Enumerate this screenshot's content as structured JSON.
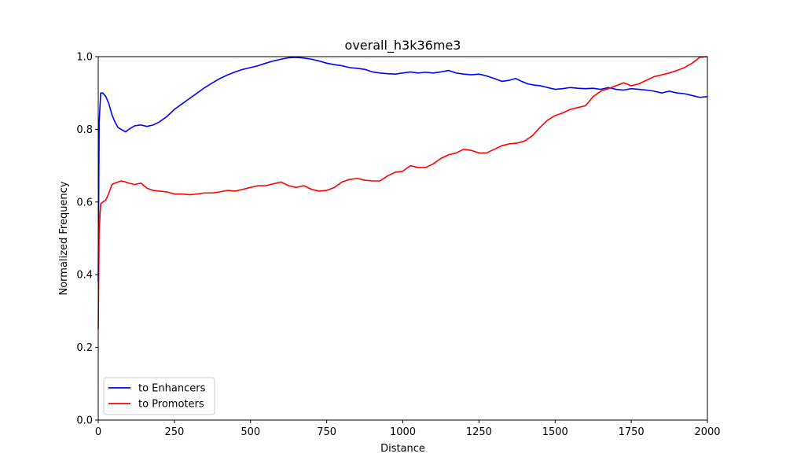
{
  "chart_data": {
    "type": "line",
    "title": "overall_h3k36me3",
    "xlabel": "Distance",
    "ylabel": "Normalized Frequency",
    "xlim": [
      0,
      2000
    ],
    "ylim": [
      0,
      1.0
    ],
    "xticks": [
      0,
      250,
      500,
      750,
      1000,
      1250,
      1500,
      1750,
      2000
    ],
    "xtick_labels": [
      "0",
      "250",
      "500",
      "750",
      "1000",
      "1250",
      "1500",
      "1750",
      "2000"
    ],
    "yticks": [
      0.0,
      0.2,
      0.4,
      0.6,
      0.8,
      1.0
    ],
    "ytick_labels": [
      "0.0",
      "0.2",
      "0.4",
      "0.6",
      "0.8",
      "1.0"
    ],
    "grid": false,
    "legend_position": "lower-left",
    "series": [
      {
        "name": "to Enhancers",
        "color": "#0000ff",
        "x": [
          0,
          3,
          8,
          15,
          25,
          35,
          45,
          55,
          65,
          75,
          90,
          100,
          120,
          140,
          160,
          180,
          200,
          225,
          250,
          275,
          300,
          325,
          350,
          375,
          400,
          425,
          450,
          475,
          500,
          525,
          550,
          575,
          600,
          625,
          650,
          675,
          700,
          725,
          750,
          775,
          800,
          825,
          850,
          875,
          900,
          925,
          950,
          975,
          1000,
          1025,
          1050,
          1075,
          1100,
          1125,
          1150,
          1175,
          1200,
          1225,
          1250,
          1275,
          1300,
          1325,
          1350,
          1370,
          1390,
          1410,
          1430,
          1450,
          1475,
          1500,
          1525,
          1550,
          1575,
          1600,
          1625,
          1650,
          1675,
          1700,
          1725,
          1750,
          1775,
          1800,
          1825,
          1850,
          1875,
          1900,
          1925,
          1950,
          1975,
          2000
        ],
        "y": [
          0.38,
          0.82,
          0.9,
          0.9,
          0.89,
          0.87,
          0.84,
          0.82,
          0.805,
          0.8,
          0.793,
          0.8,
          0.81,
          0.812,
          0.808,
          0.812,
          0.82,
          0.835,
          0.855,
          0.87,
          0.885,
          0.9,
          0.915,
          0.928,
          0.94,
          0.95,
          0.958,
          0.965,
          0.97,
          0.975,
          0.982,
          0.988,
          0.993,
          0.997,
          0.998,
          0.996,
          0.993,
          0.988,
          0.982,
          0.978,
          0.975,
          0.97,
          0.968,
          0.965,
          0.958,
          0.955,
          0.953,
          0.952,
          0.955,
          0.958,
          0.955,
          0.957,
          0.955,
          0.958,
          0.962,
          0.955,
          0.952,
          0.95,
          0.952,
          0.947,
          0.94,
          0.932,
          0.935,
          0.94,
          0.932,
          0.925,
          0.922,
          0.92,
          0.915,
          0.91,
          0.912,
          0.915,
          0.913,
          0.912,
          0.913,
          0.91,
          0.915,
          0.91,
          0.908,
          0.912,
          0.91,
          0.908,
          0.905,
          0.9,
          0.905,
          0.9,
          0.898,
          0.893,
          0.888,
          0.89
        ]
      },
      {
        "name": "to Promoters",
        "color": "#ff0000",
        "x": [
          0,
          3,
          8,
          15,
          25,
          35,
          45,
          55,
          65,
          75,
          90,
          100,
          120,
          140,
          160,
          180,
          200,
          225,
          250,
          275,
          300,
          325,
          350,
          375,
          400,
          425,
          450,
          475,
          500,
          525,
          550,
          575,
          600,
          625,
          650,
          675,
          700,
          725,
          750,
          775,
          800,
          825,
          850,
          875,
          900,
          925,
          950,
          975,
          1000,
          1025,
          1050,
          1075,
          1100,
          1125,
          1150,
          1175,
          1200,
          1225,
          1250,
          1275,
          1300,
          1325,
          1350,
          1375,
          1400,
          1425,
          1450,
          1475,
          1500,
          1525,
          1550,
          1575,
          1600,
          1625,
          1650,
          1675,
          1700,
          1725,
          1750,
          1775,
          1800,
          1825,
          1850,
          1875,
          1900,
          1925,
          1950,
          1975,
          2000
        ],
        "y": [
          0.25,
          0.52,
          0.595,
          0.6,
          0.605,
          0.625,
          0.648,
          0.652,
          0.655,
          0.658,
          0.655,
          0.652,
          0.648,
          0.652,
          0.638,
          0.632,
          0.63,
          0.628,
          0.622,
          0.622,
          0.62,
          0.622,
          0.625,
          0.625,
          0.628,
          0.632,
          0.63,
          0.635,
          0.64,
          0.645,
          0.645,
          0.65,
          0.655,
          0.645,
          0.64,
          0.645,
          0.635,
          0.63,
          0.632,
          0.64,
          0.655,
          0.662,
          0.665,
          0.66,
          0.658,
          0.658,
          0.672,
          0.682,
          0.685,
          0.7,
          0.695,
          0.695,
          0.705,
          0.72,
          0.73,
          0.735,
          0.745,
          0.742,
          0.735,
          0.735,
          0.745,
          0.755,
          0.76,
          0.762,
          0.768,
          0.782,
          0.805,
          0.825,
          0.838,
          0.845,
          0.855,
          0.86,
          0.865,
          0.89,
          0.905,
          0.912,
          0.92,
          0.928,
          0.92,
          0.925,
          0.935,
          0.945,
          0.95,
          0.955,
          0.962,
          0.97,
          0.982,
          0.998,
          1.0
        ]
      }
    ]
  }
}
